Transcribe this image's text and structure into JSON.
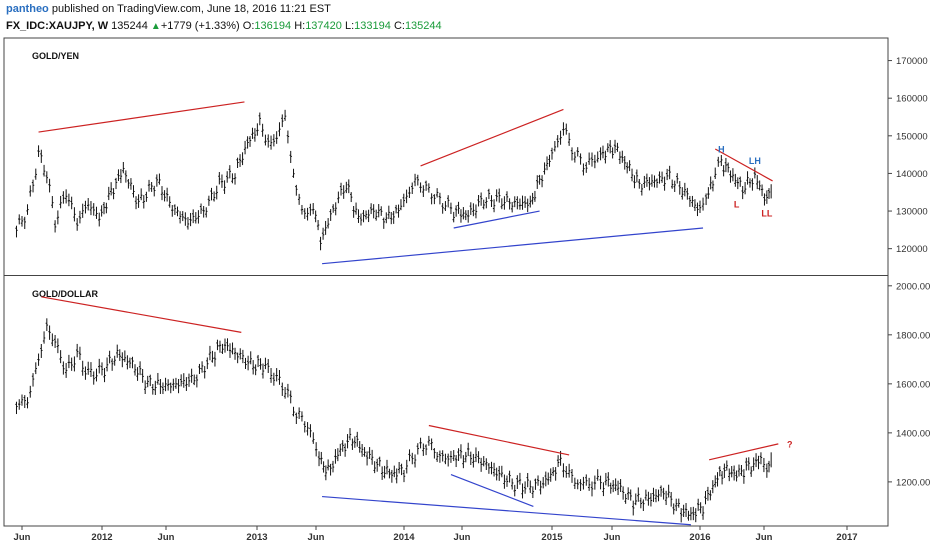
{
  "header": {
    "user": "pantheo",
    "published": "published on TradingView.com, June 18, 2016 11:21 EST",
    "symbol": "FX_IDC:XAUJPY, W",
    "last": "135244",
    "change": "+1779 (+1.33%)",
    "o_label": "O:",
    "o_value": "136194",
    "h_label": "H:",
    "h_value": "137420",
    "l_label": "L:",
    "l_value": "133194",
    "c_label": "C:",
    "c_value": "135244",
    "up_color": "#1a9b3a",
    "user_color": "#2a6fc0",
    "up_icon": "triangle-up-icon"
  },
  "chart_data": [
    {
      "type": "ohlc-bar",
      "title": "GOLD/YEN",
      "x_ticks": [
        "Jun",
        "2012",
        "Jun",
        "2013",
        "Jun",
        "2014",
        "Jun",
        "2015",
        "Jun",
        "2016",
        "Jun",
        "2017"
      ],
      "y_ticks": [
        "170000",
        "160000",
        "150000",
        "140000",
        "130000",
        "120000"
      ],
      "ylim": [
        113000,
        176000
      ],
      "grid": false,
      "series": [
        {
          "values": [
            [
              2011.38,
              125000
            ],
            [
              2011.46,
              130000
            ],
            [
              2011.54,
              145000
            ],
            [
              2011.6,
              140000
            ],
            [
              2011.66,
              127000
            ],
            [
              2011.74,
              135000
            ],
            [
              2011.82,
              127000
            ],
            [
              2011.9,
              132000
            ],
            [
              2011.98,
              128000
            ],
            [
              2012.06,
              135000
            ],
            [
              2012.14,
              141000
            ],
            [
              2012.24,
              132000
            ],
            [
              2012.36,
              138000
            ],
            [
              2012.46,
              131000
            ],
            [
              2012.56,
              127000
            ],
            [
              2012.66,
              130000
            ],
            [
              2012.76,
              137000
            ],
            [
              2012.86,
              140000
            ],
            [
              2012.94,
              148000
            ],
            [
              2013.02,
              153000
            ],
            [
              2013.1,
              147000
            ],
            [
              2013.2,
              155000
            ],
            [
              2013.28,
              135000
            ],
            [
              2013.36,
              128000
            ],
            [
              2013.4,
              132000
            ],
            [
              2013.45,
              122000
            ],
            [
              2013.55,
              132000
            ],
            [
              2013.62,
              137000
            ],
            [
              2013.7,
              128000
            ],
            [
              2013.8,
              130000
            ],
            [
              2013.9,
              128000
            ],
            [
              2013.98,
              131000
            ],
            [
              2014.08,
              138000
            ],
            [
              2014.16,
              136000
            ],
            [
              2014.26,
              133000
            ],
            [
              2014.36,
              130000
            ],
            [
              2014.46,
              129000
            ],
            [
              2014.56,
              133000
            ],
            [
              2014.66,
              133000
            ],
            [
              2014.76,
              132000
            ],
            [
              2014.86,
              132000
            ],
            [
              2014.92,
              138000
            ],
            [
              2015.0,
              145000
            ],
            [
              2015.08,
              152000
            ],
            [
              2015.16,
              145000
            ],
            [
              2015.24,
              142000
            ],
            [
              2015.34,
              145000
            ],
            [
              2015.44,
              147000
            ],
            [
              2015.52,
              142000
            ],
            [
              2015.6,
              137000
            ],
            [
              2015.7,
              138000
            ],
            [
              2015.8,
              139000
            ],
            [
              2015.9,
              135000
            ],
            [
              2016.0,
              130000
            ],
            [
              2016.04,
              133000
            ],
            [
              2016.1,
              140000
            ],
            [
              2016.14,
              143000
            ],
            [
              2016.2,
              140000
            ],
            [
              2016.28,
              136000
            ],
            [
              2016.36,
              139000
            ],
            [
              2016.44,
              133000
            ],
            [
              2016.47,
              135244
            ]
          ]
        }
      ],
      "annotations": [
        {
          "text": "H",
          "x": 2016.14,
          "y": 145500,
          "color": "#2a6fc0"
        },
        {
          "text": "LH",
          "x": 2016.36,
          "y": 142500,
          "color": "#2a6fc0"
        },
        {
          "text": "L",
          "x": 2016.24,
          "y": 131000,
          "color": "#cc2222"
        },
        {
          "text": "LL",
          "x": 2016.44,
          "y": 128500,
          "color": "#cc2222"
        }
      ],
      "trendlines": [
        {
          "x1": 2011.54,
          "y1": 151000,
          "x2": 2012.92,
          "y2": 159000,
          "color": "#cc2222"
        },
        {
          "x1": 2014.12,
          "y1": 142000,
          "x2": 2015.08,
          "y2": 157000,
          "color": "#cc2222"
        },
        {
          "x1": 2016.1,
          "y1": 146500,
          "x2": 2016.48,
          "y2": 138000,
          "color": "#cc2222"
        },
        {
          "x1": 2014.36,
          "y1": 125500,
          "x2": 2014.92,
          "y2": 130000,
          "color": "#3344cc"
        },
        {
          "x1": 2013.46,
          "y1": 116000,
          "x2": 2016.02,
          "y2": 125500,
          "color": "#3344cc"
        }
      ]
    },
    {
      "type": "ohlc-bar",
      "title": "GOLD/DOLLAR",
      "x_ticks": [
        "Jun",
        "2012",
        "Jun",
        "2013",
        "Jun",
        "2014",
        "Jun",
        "2015",
        "Jun",
        "2016",
        "Jun",
        "2017"
      ],
      "y_ticks": [
        "2000.00",
        "1800.00",
        "1600.00",
        "1400.00",
        "1200.00"
      ],
      "ylim": [
        1020,
        2040
      ],
      "grid": false,
      "series": [
        {
          "values": [
            [
              2011.38,
              1520
            ],
            [
              2011.46,
              1530
            ],
            [
              2011.54,
              1700
            ],
            [
              2011.6,
              1830
            ],
            [
              2011.66,
              1770
            ],
            [
              2011.74,
              1650
            ],
            [
              2011.82,
              1720
            ],
            [
              2011.9,
              1640
            ],
            [
              2012.0,
              1650
            ],
            [
              2012.1,
              1720
            ],
            [
              2012.2,
              1680
            ],
            [
              2012.3,
              1600
            ],
            [
              2012.4,
              1590
            ],
            [
              2012.5,
              1600
            ],
            [
              2012.6,
              1620
            ],
            [
              2012.7,
              1700
            ],
            [
              2012.78,
              1760
            ],
            [
              2012.86,
              1730
            ],
            [
              2012.96,
              1680
            ],
            [
              2013.06,
              1670
            ],
            [
              2013.14,
              1620
            ],
            [
              2013.2,
              1580
            ],
            [
              2013.28,
              1480
            ],
            [
              2013.36,
              1430
            ],
            [
              2013.44,
              1300
            ],
            [
              2013.5,
              1240
            ],
            [
              2013.58,
              1330
            ],
            [
              2013.66,
              1380
            ],
            [
              2013.74,
              1320
            ],
            [
              2013.84,
              1260
            ],
            [
              2013.92,
              1230
            ],
            [
              2014.0,
              1250
            ],
            [
              2014.1,
              1330
            ],
            [
              2014.18,
              1360
            ],
            [
              2014.26,
              1300
            ],
            [
              2014.36,
              1300
            ],
            [
              2014.46,
              1310
            ],
            [
              2014.56,
              1280
            ],
            [
              2014.66,
              1230
            ],
            [
              2014.76,
              1190
            ],
            [
              2014.86,
              1180
            ],
            [
              2014.96,
              1200
            ],
            [
              2015.06,
              1280
            ],
            [
              2015.16,
              1200
            ],
            [
              2015.26,
              1190
            ],
            [
              2015.36,
              1200
            ],
            [
              2015.46,
              1180
            ],
            [
              2015.56,
              1120
            ],
            [
              2015.66,
              1130
            ],
            [
              2015.76,
              1160
            ],
            [
              2015.86,
              1090
            ],
            [
              2015.94,
              1065
            ],
            [
              2016.02,
              1100
            ],
            [
              2016.1,
              1200
            ],
            [
              2016.16,
              1250
            ],
            [
              2016.24,
              1230
            ],
            [
              2016.32,
              1260
            ],
            [
              2016.4,
              1290
            ],
            [
              2016.44,
              1240
            ],
            [
              2016.47,
              1290
            ]
          ]
        }
      ],
      "annotations": [
        {
          "text": "?",
          "x": 2016.6,
          "y": 1340,
          "color": "#cc2222"
        }
      ],
      "trendlines": [
        {
          "x1": 2011.56,
          "y1": 1955,
          "x2": 2012.9,
          "y2": 1810,
          "color": "#cc2222"
        },
        {
          "x1": 2014.18,
          "y1": 1430,
          "x2": 2015.12,
          "y2": 1310,
          "color": "#cc2222"
        },
        {
          "x1": 2016.06,
          "y1": 1290,
          "x2": 2016.52,
          "y2": 1355,
          "color": "#cc2222"
        },
        {
          "x1": 2014.34,
          "y1": 1230,
          "x2": 2014.88,
          "y2": 1100,
          "color": "#3344cc"
        },
        {
          "x1": 2013.46,
          "y1": 1140,
          "x2": 2015.94,
          "y2": 1025,
          "color": "#3344cc"
        }
      ]
    }
  ]
}
